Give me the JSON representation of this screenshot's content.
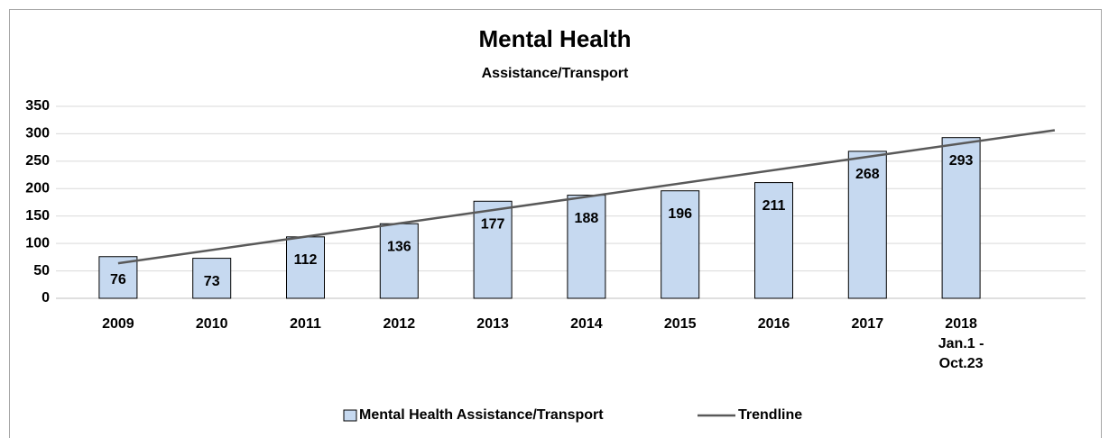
{
  "chart_data": {
    "type": "bar",
    "title": "Mental Health",
    "subtitle": "Assistance/Transport",
    "categories": [
      "2009",
      "2010",
      "2011",
      "2012",
      "2013",
      "2014",
      "2015",
      "2016",
      "2017",
      "2018\nJan.1 -\nOct.23"
    ],
    "series": [
      {
        "name": "Mental Health Assistance/Transport",
        "color": "#c6d9f0",
        "values": [
          76,
          73,
          112,
          136,
          177,
          188,
          196,
          211,
          268,
          293
        ]
      }
    ],
    "trendline": {
      "name": "Trendline",
      "color": "#595959",
      "type": "linear",
      "forward": 1
    },
    "ylim": [
      0,
      350
    ],
    "yticks": [
      0,
      50,
      100,
      150,
      200,
      250,
      300,
      350
    ],
    "grid": true,
    "legend": "bottom"
  }
}
